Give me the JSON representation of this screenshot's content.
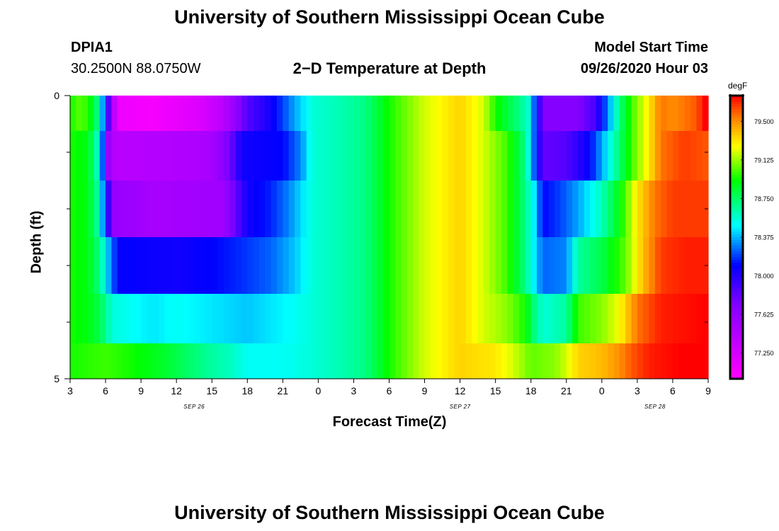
{
  "header": {
    "title": "University of Southern Mississippi Ocean Cube",
    "station_id": "DPIA1",
    "station_coords": "30.2500N 88.0750W",
    "subtitle": "2−D Temperature at Depth",
    "model_start_label": "Model Start Time",
    "model_start_value": "09/26/2020 Hour 03"
  },
  "footer": {
    "title": "University of Southern Mississippi Ocean Cube"
  },
  "chart_data": {
    "type": "heatmap",
    "title": "2−D Temperature at Depth",
    "xlabel": "Forecast Time(Z)",
    "ylabel": "Depth (ft)",
    "x_tick_labels": [
      "3",
      "6",
      "9",
      "12",
      "15",
      "18",
      "21",
      "0",
      "3",
      "6",
      "9",
      "12",
      "15",
      "18",
      "21",
      "0",
      "3",
      "6",
      "9"
    ],
    "x_day_labels": [
      {
        "label": "SEP 26",
        "at_tick": 3.5
      },
      {
        "label": "SEP 27",
        "at_tick": 11
      },
      {
        "label": "SEP 28",
        "at_tick": 16.5
      }
    ],
    "x_hours_range": [
      3,
      57
    ],
    "y_tick_labels": [
      "0",
      "5"
    ],
    "ylim": [
      0,
      5
    ],
    "depth_bands_ft": [
      0.25,
      1.0,
      2.0,
      3.0,
      4.0,
      4.75
    ],
    "colorbar": {
      "unit": "degF",
      "range": [
        77.0,
        79.75
      ],
      "tick_labels": [
        "77.250",
        "77.625",
        "78.000",
        "78.375",
        "78.750",
        "79.125",
        "79.500"
      ]
    },
    "rows": [
      {
        "depth_ft": 0.25,
        "knots": [
          [
            3,
            78.95
          ],
          [
            4,
            79.05
          ],
          [
            5,
            78.85
          ],
          [
            5.5,
            78.6
          ],
          [
            5.9,
            78.2
          ],
          [
            6.5,
            77.6
          ],
          [
            7,
            77.1
          ],
          [
            10,
            77.05
          ],
          [
            14,
            77.2
          ],
          [
            16,
            77.4
          ],
          [
            18,
            77.85
          ],
          [
            20,
            78.05
          ],
          [
            21,
            78.2
          ],
          [
            22,
            78.35
          ],
          [
            23.5,
            78.55
          ],
          [
            26,
            78.62
          ],
          [
            28,
            78.7
          ],
          [
            30,
            78.95
          ],
          [
            33,
            79.2
          ],
          [
            36,
            79.35
          ],
          [
            38,
            79.2
          ],
          [
            39,
            78.95
          ],
          [
            41.7,
            78.6
          ],
          [
            42.5,
            78.1
          ],
          [
            43,
            77.7
          ],
          [
            46,
            77.7
          ],
          [
            47.5,
            77.9
          ],
          [
            48.5,
            78.3
          ],
          [
            49.5,
            78.7
          ],
          [
            50.5,
            79.0
          ],
          [
            52,
            79.3
          ],
          [
            53,
            79.55
          ],
          [
            54,
            79.5
          ],
          [
            56,
            79.6
          ],
          [
            57,
            79.8
          ]
        ]
      },
      {
        "depth_ft": 1.0,
        "knots": [
          [
            3,
            78.95
          ],
          [
            4.5,
            78.9
          ],
          [
            5.3,
            78.6
          ],
          [
            5.8,
            78.2
          ],
          [
            6.3,
            77.5
          ],
          [
            7,
            77.4
          ],
          [
            13,
            77.45
          ],
          [
            15,
            77.5
          ],
          [
            16.5,
            77.75
          ],
          [
            17.5,
            78.05
          ],
          [
            21,
            78.1
          ],
          [
            22.5,
            78.3
          ],
          [
            23.5,
            78.55
          ],
          [
            26,
            78.62
          ],
          [
            28,
            78.7
          ],
          [
            30,
            78.95
          ],
          [
            33,
            79.2
          ],
          [
            36,
            79.35
          ],
          [
            38,
            79.2
          ],
          [
            40,
            79.0
          ],
          [
            41.5,
            78.7
          ],
          [
            42.5,
            78.1
          ],
          [
            43,
            77.8
          ],
          [
            45,
            77.85
          ],
          [
            47,
            78.1
          ],
          [
            48,
            78.35
          ],
          [
            49,
            78.6
          ],
          [
            50.5,
            79.0
          ],
          [
            52,
            79.3
          ],
          [
            53,
            79.55
          ],
          [
            55,
            79.65
          ],
          [
            57,
            79.6
          ]
        ]
      },
      {
        "depth_ft": 2.0,
        "knots": [
          [
            3,
            78.95
          ],
          [
            4.5,
            78.9
          ],
          [
            5.5,
            78.6
          ],
          [
            6,
            78.1
          ],
          [
            6.7,
            77.6
          ],
          [
            10,
            77.5
          ],
          [
            16,
            77.55
          ],
          [
            17,
            77.8
          ],
          [
            18,
            78.05
          ],
          [
            20,
            78.15
          ],
          [
            21.5,
            78.3
          ],
          [
            23.5,
            78.55
          ],
          [
            26,
            78.62
          ],
          [
            28,
            78.7
          ],
          [
            30,
            78.95
          ],
          [
            33,
            79.2
          ],
          [
            36,
            79.35
          ],
          [
            38,
            79.2
          ],
          [
            40,
            79.0
          ],
          [
            41.5,
            78.7
          ],
          [
            42.3,
            78.45
          ],
          [
            43,
            78.1
          ],
          [
            44.5,
            78.2
          ],
          [
            46,
            78.35
          ],
          [
            48,
            78.6
          ],
          [
            49.5,
            78.9
          ],
          [
            51,
            79.3
          ],
          [
            52.5,
            79.55
          ],
          [
            54,
            79.65
          ],
          [
            57,
            79.65
          ]
        ]
      },
      {
        "depth_ft": 3.0,
        "knots": [
          [
            3,
            78.95
          ],
          [
            4.5,
            78.9
          ],
          [
            5.5,
            78.7
          ],
          [
            6.3,
            78.35
          ],
          [
            7,
            78.1
          ],
          [
            12,
            78.05
          ],
          [
            15,
            78.1
          ],
          [
            17,
            78.15
          ],
          [
            20,
            78.25
          ],
          [
            22,
            78.4
          ],
          [
            23.5,
            78.55
          ],
          [
            26,
            78.62
          ],
          [
            28,
            78.7
          ],
          [
            30,
            78.95
          ],
          [
            33,
            79.2
          ],
          [
            36,
            79.35
          ],
          [
            38,
            79.2
          ],
          [
            40,
            79.0
          ],
          [
            41.5,
            78.7
          ],
          [
            42.3,
            78.45
          ],
          [
            43,
            78.25
          ],
          [
            45,
            78.3
          ],
          [
            46,
            78.65
          ],
          [
            48,
            78.8
          ],
          [
            50,
            79.05
          ],
          [
            51.5,
            79.4
          ],
          [
            53,
            79.65
          ],
          [
            55,
            79.7
          ],
          [
            57,
            79.7
          ]
        ]
      },
      {
        "depth_ft": 4.0,
        "knots": [
          [
            3,
            78.95
          ],
          [
            4.5,
            78.9
          ],
          [
            5.5,
            78.8
          ],
          [
            6.5,
            78.55
          ],
          [
            8,
            78.5
          ],
          [
            10,
            78.45
          ],
          [
            12,
            78.5
          ],
          [
            15,
            78.45
          ],
          [
            18,
            78.4
          ],
          [
            20,
            78.45
          ],
          [
            22,
            78.5
          ],
          [
            23.5,
            78.55
          ],
          [
            26,
            78.62
          ],
          [
            28,
            78.7
          ],
          [
            30,
            78.95
          ],
          [
            33,
            79.2
          ],
          [
            36,
            79.35
          ],
          [
            38,
            79.2
          ],
          [
            40,
            79.1
          ],
          [
            41.5,
            78.95
          ],
          [
            42.3,
            78.7
          ],
          [
            43,
            78.55
          ],
          [
            45,
            78.65
          ],
          [
            46,
            79.0
          ],
          [
            48,
            79.1
          ],
          [
            49.5,
            79.25
          ],
          [
            51,
            79.55
          ],
          [
            53,
            79.7
          ],
          [
            57,
            79.75
          ]
        ]
      },
      {
        "depth_ft": 4.75,
        "knots": [
          [
            3,
            78.95
          ],
          [
            6,
            79.0
          ],
          [
            8,
            78.95
          ],
          [
            11,
            78.85
          ],
          [
            13,
            78.75
          ],
          [
            15,
            78.65
          ],
          [
            16.5,
            78.6
          ],
          [
            18,
            78.5
          ],
          [
            21,
            78.5
          ],
          [
            23.5,
            78.55
          ],
          [
            26,
            78.62
          ],
          [
            28,
            78.7
          ],
          [
            30,
            78.95
          ],
          [
            33,
            79.2
          ],
          [
            36,
            79.35
          ],
          [
            39,
            79.3
          ],
          [
            40.5,
            79.2
          ],
          [
            42,
            79.05
          ],
          [
            44,
            79.1
          ],
          [
            45,
            79.2
          ],
          [
            46,
            79.35
          ],
          [
            48,
            79.4
          ],
          [
            49.5,
            79.5
          ],
          [
            50.5,
            79.6
          ],
          [
            52,
            79.7
          ],
          [
            57,
            79.8
          ]
        ]
      }
    ]
  }
}
